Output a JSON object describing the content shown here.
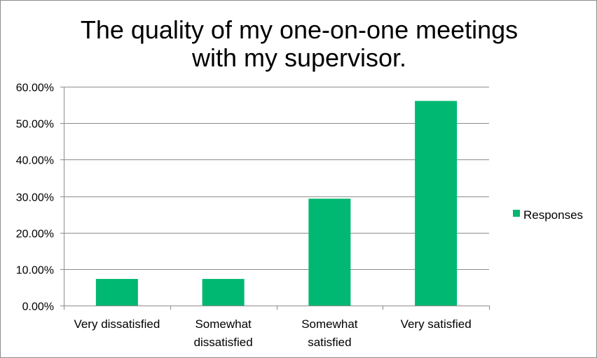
{
  "chart_data": {
    "type": "bar",
    "title_lines": [
      "The quality of my one-on-one meetings",
      "with my supervisor."
    ],
    "categories": [
      [
        "Very dissatisfied"
      ],
      [
        "Somewhat",
        "dissatisfied"
      ],
      [
        "Somewhat",
        "satisfied"
      ],
      [
        "Very satisfied"
      ]
    ],
    "series": [
      {
        "name": "Responses",
        "values": [
          7.3,
          7.3,
          29.3,
          56.1
        ],
        "color": "#00b871"
      }
    ],
    "ylim": [
      0,
      60
    ],
    "yticks": [
      {
        "value": 0,
        "label": "0.00%"
      },
      {
        "value": 10,
        "label": "10.00%"
      },
      {
        "value": 20,
        "label": "20.00%"
      },
      {
        "value": 30,
        "label": "30.00%"
      },
      {
        "value": 40,
        "label": "40.00%"
      },
      {
        "value": 50,
        "label": "50.00%"
      },
      {
        "value": 60,
        "label": "60.00%"
      }
    ],
    "grid": true,
    "legend_position": "right",
    "gridline_color": "#8c8c8c"
  }
}
